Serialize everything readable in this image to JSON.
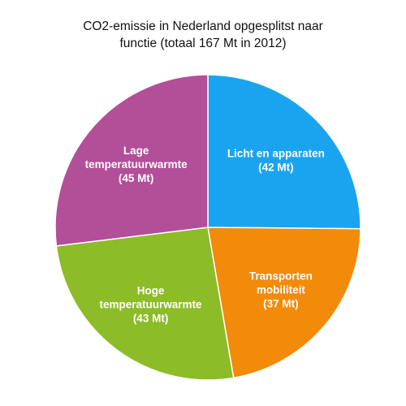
{
  "chart_data": {
    "type": "pie",
    "title_lines": [
      "CO2-emissie in Nederland opgesplitst naar",
      "functie (totaal 167 Mt in 2012)"
    ],
    "slices": [
      {
        "name": "Licht en apparaten",
        "value": 42,
        "label_lines": [
          "Licht en apparaten",
          "(42 Mt)"
        ],
        "color": "#1AA4F0"
      },
      {
        "name": "Transporten mobiliteit",
        "value": 37,
        "label_lines": [
          "Transporten",
          "mobiliteit",
          "(37 Mt)"
        ],
        "color": "#F28A0A"
      },
      {
        "name": "Hoge temperatuurwarmte",
        "value": 43,
        "label_lines": [
          "Hoge",
          "temperatuurwarmte",
          "(43 Mt)"
        ],
        "color": "#8CBC28"
      },
      {
        "name": "Lage temperatuurwarmte",
        "value": 45,
        "label_lines": [
          "Lage",
          "temperatuurwarmte",
          "(45 Mt)"
        ],
        "color": "#B34E98"
      }
    ],
    "start": "12 o'clock",
    "direction": "clockwise",
    "legend": "none"
  }
}
